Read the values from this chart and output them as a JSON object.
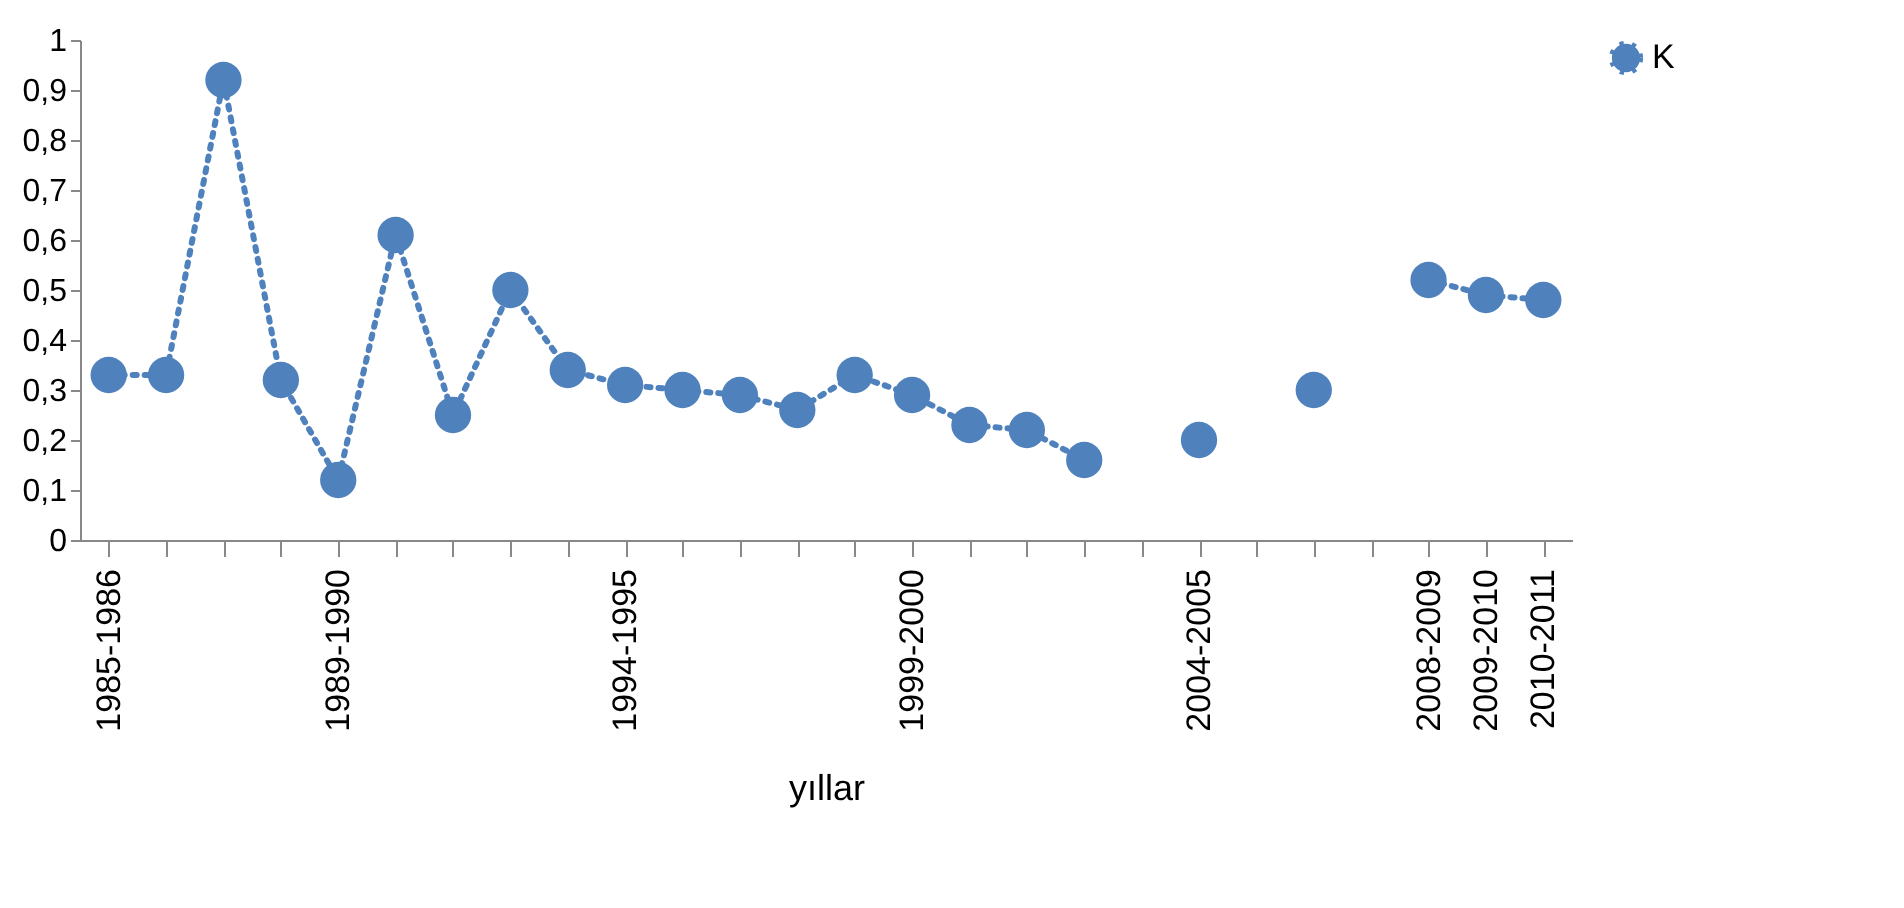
{
  "chart_data": {
    "type": "line",
    "xlabel": "yıllar",
    "categories": [
      "1985-1986",
      null,
      null,
      null,
      "1989-1990",
      null,
      null,
      null,
      null,
      "1994-1995",
      null,
      null,
      null,
      null,
      "1999-2000",
      null,
      null,
      null,
      null,
      "2004-2005",
      null,
      null,
      null,
      "2008-2009",
      "2009-2010",
      "2010-2011"
    ],
    "series": [
      {
        "name": "K",
        "color": "#4f81bd",
        "values": [
          0.33,
          0.33,
          0.92,
          0.32,
          0.12,
          0.61,
          0.25,
          0.5,
          0.34,
          0.31,
          0.3,
          0.29,
          0.26,
          0.33,
          0.29,
          0.23,
          0.22,
          0.16,
          null,
          0.2,
          null,
          0.3,
          null,
          0.52,
          0.49,
          0.48
        ]
      }
    ],
    "ylim": [
      0,
      1
    ],
    "yticks": [
      0,
      {
        "value": 0.1,
        "label": "0,1"
      },
      {
        "value": 0.2,
        "label": "0,2"
      },
      {
        "value": 0.3,
        "label": "0,3"
      },
      {
        "value": 0.4,
        "label": "0,4"
      },
      {
        "value": 0.5,
        "label": "0,5"
      },
      {
        "value": 0.6,
        "label": "0,6"
      },
      {
        "value": 0.7,
        "label": "0,7"
      },
      {
        "value": 0.8,
        "label": "0,8"
      },
      {
        "value": 0.9,
        "label": "0,9"
      },
      1
    ],
    "grid": false,
    "legend": "right",
    "marker": "circle",
    "line_style": "dotted"
  }
}
